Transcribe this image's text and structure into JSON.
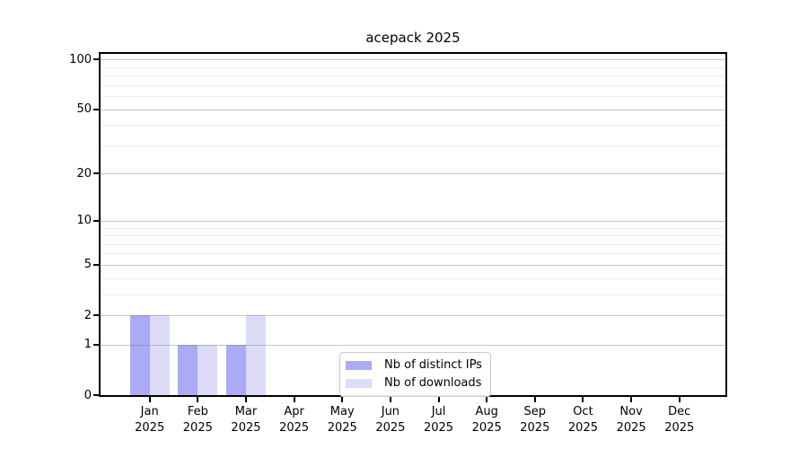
{
  "figure": {
    "background": "#ffffff"
  },
  "chart_data": {
    "type": "bar",
    "title": "acepack 2025",
    "x": {
      "months": [
        "Jan",
        "Feb",
        "Mar",
        "Apr",
        "May",
        "Jun",
        "Jul",
        "Aug",
        "Sep",
        "Oct",
        "Nov",
        "Dec"
      ],
      "year": "2025"
    },
    "y_axis": {
      "scale": "log(1+x)",
      "major_ticks": [
        0,
        1,
        2,
        5,
        10,
        20,
        50,
        100
      ],
      "minor_gridlines": [
        3,
        4,
        6,
        7,
        8,
        9,
        30,
        40,
        60,
        70,
        80,
        90
      ],
      "range": [
        0,
        113
      ]
    },
    "series": [
      {
        "key": "distinct-ips",
        "name": "Nb of distinct IPs",
        "color": "#aaaaf5",
        "values": [
          2,
          1,
          1,
          0,
          0,
          0,
          0,
          0,
          0,
          0,
          0,
          0
        ]
      },
      {
        "key": "downloads",
        "name": "Nb of downloads",
        "color": "#dcdcf8",
        "values": [
          2,
          1,
          2,
          0,
          0,
          0,
          0,
          0,
          0,
          0,
          0,
          0
        ]
      }
    ],
    "legend": {
      "position": "bottom-center",
      "entries": [
        "Nb of distinct IPs",
        "Nb of downloads"
      ]
    },
    "grid": true
  }
}
